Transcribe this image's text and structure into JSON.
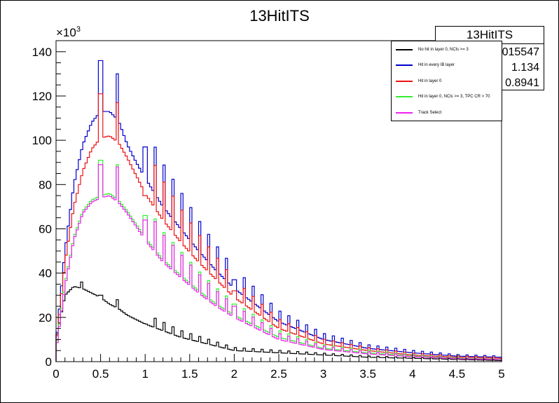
{
  "chart_data": {
    "type": "line",
    "title": "13HitITS",
    "xlabel": "",
    "ylabel": "",
    "y_multiplier_label": "×10",
    "y_multiplier_exp": "3",
    "xlim": [
      0,
      5
    ],
    "ylim": [
      0,
      145
    ],
    "x_ticks": [
      "0",
      "0.5",
      "1",
      "1.5",
      "2",
      "2.5",
      "3",
      "3.5",
      "4",
      "4.5",
      "5"
    ],
    "y_ticks": [
      "0",
      "20",
      "40",
      "60",
      "80",
      "100",
      "120",
      "140"
    ],
    "bin_width": 0.025,
    "grid": false,
    "legend_position": "top-right",
    "series": [
      {
        "name": "No hit in layer 0, NCls >= 3",
        "color": "#000000",
        "x": [
          0.0,
          0.1,
          0.2,
          0.3,
          0.4,
          0.5,
          0.6,
          0.7,
          0.8,
          0.9,
          1.0,
          1.2,
          1.4,
          1.6,
          1.8,
          2.0,
          2.5,
          3.0,
          3.5,
          4.0,
          4.5,
          5.0
        ],
        "y": [
          10,
          30,
          34,
          33,
          31,
          29,
          26,
          24,
          21,
          19,
          17,
          14,
          11,
          9,
          7,
          5,
          4,
          3,
          2,
          1.5,
          1,
          0.5
        ],
        "spikes": [
          {
            "x": 0.28,
            "y": 36
          },
          {
            "x": 0.5,
            "y": 30
          },
          {
            "x": 0.68,
            "y": 28
          },
          {
            "x": 1.02,
            "y": 17
          }
        ]
      },
      {
        "name": "Hit in every IB layer",
        "color": "#0000cc",
        "x": [
          0.0,
          0.1,
          0.2,
          0.3,
          0.4,
          0.5,
          0.6,
          0.7,
          0.8,
          0.9,
          1.0,
          1.2,
          1.4,
          1.6,
          1.8,
          2.0,
          2.5,
          3.0,
          3.5,
          4.0,
          4.5,
          5.0
        ],
        "y": [
          8,
          50,
          80,
          98,
          108,
          113,
          113,
          109,
          98,
          90,
          83,
          70,
          60,
          50,
          41,
          33,
          18,
          10,
          6,
          4,
          2.5,
          2
        ],
        "spikes": [
          {
            "x": 0.5,
            "y": 136
          },
          {
            "x": 0.68,
            "y": 130
          },
          {
            "x": 1.0,
            "y": 97
          },
          {
            "x": 2.0,
            "y": 37
          }
        ]
      },
      {
        "name": "Hit in layer 0",
        "color": "#ee1111",
        "x": [
          0.0,
          0.1,
          0.2,
          0.3,
          0.4,
          0.5,
          0.6,
          0.7,
          0.8,
          0.9,
          1.0,
          1.2,
          1.4,
          1.6,
          1.8,
          2.0,
          2.5,
          3.0,
          3.5,
          4.0,
          4.5,
          5.0
        ],
        "y": [
          7,
          45,
          70,
          86,
          96,
          101,
          102,
          99,
          92,
          84,
          76,
          64,
          54,
          45,
          37,
          29,
          15,
          8,
          5,
          3,
          2,
          1.5
        ],
        "spikes": [
          {
            "x": 0.5,
            "y": 121
          },
          {
            "x": 0.68,
            "y": 117
          },
          {
            "x": 1.0,
            "y": 75
          },
          {
            "x": 2.0,
            "y": 32
          }
        ]
      },
      {
        "name": "Hit in layer 0, NCls >= 3, TPC CR > 70",
        "color": "#33ee33",
        "x": [
          0.0,
          0.1,
          0.2,
          0.3,
          0.4,
          0.5,
          0.6,
          0.7,
          0.8,
          0.9,
          1.0,
          1.2,
          1.4,
          1.6,
          1.8,
          2.0,
          2.5,
          3.0,
          3.5,
          4.0,
          4.5,
          5.0
        ],
        "y": [
          6,
          35,
          56,
          68,
          73,
          75,
          76,
          73,
          68,
          62,
          56,
          46,
          39,
          32,
          26,
          21,
          11,
          6,
          4,
          2.5,
          1.5,
          1
        ],
        "spikes": [
          {
            "x": 0.5,
            "y": 91
          },
          {
            "x": 0.68,
            "y": 89
          },
          {
            "x": 1.0,
            "y": 66
          },
          {
            "x": 2.0,
            "y": 26
          }
        ]
      },
      {
        "name": "Track Select",
        "color": "#ee22ee",
        "x": [
          0.0,
          0.1,
          0.2,
          0.3,
          0.4,
          0.5,
          0.6,
          0.7,
          0.8,
          0.9,
          1.0,
          1.2,
          1.4,
          1.6,
          1.8,
          2.0,
          2.5,
          3.0,
          3.5,
          4.0,
          4.5,
          5.0
        ],
        "y": [
          5,
          34,
          55,
          67,
          72,
          74,
          75,
          72,
          67,
          61,
          55,
          45,
          38,
          31,
          25,
          20,
          10,
          5.5,
          3.5,
          2.2,
          1.3,
          0.9
        ],
        "spikes": [
          {
            "x": 0.5,
            "y": 89
          },
          {
            "x": 0.68,
            "y": 88
          },
          {
            "x": 1.0,
            "y": 64
          },
          {
            "x": 2.0,
            "y": 25
          }
        ]
      }
    ]
  },
  "stats": {
    "title": "13HitITS",
    "row1": "015547",
    "row2": "1.134",
    "row3": "0.8941"
  }
}
